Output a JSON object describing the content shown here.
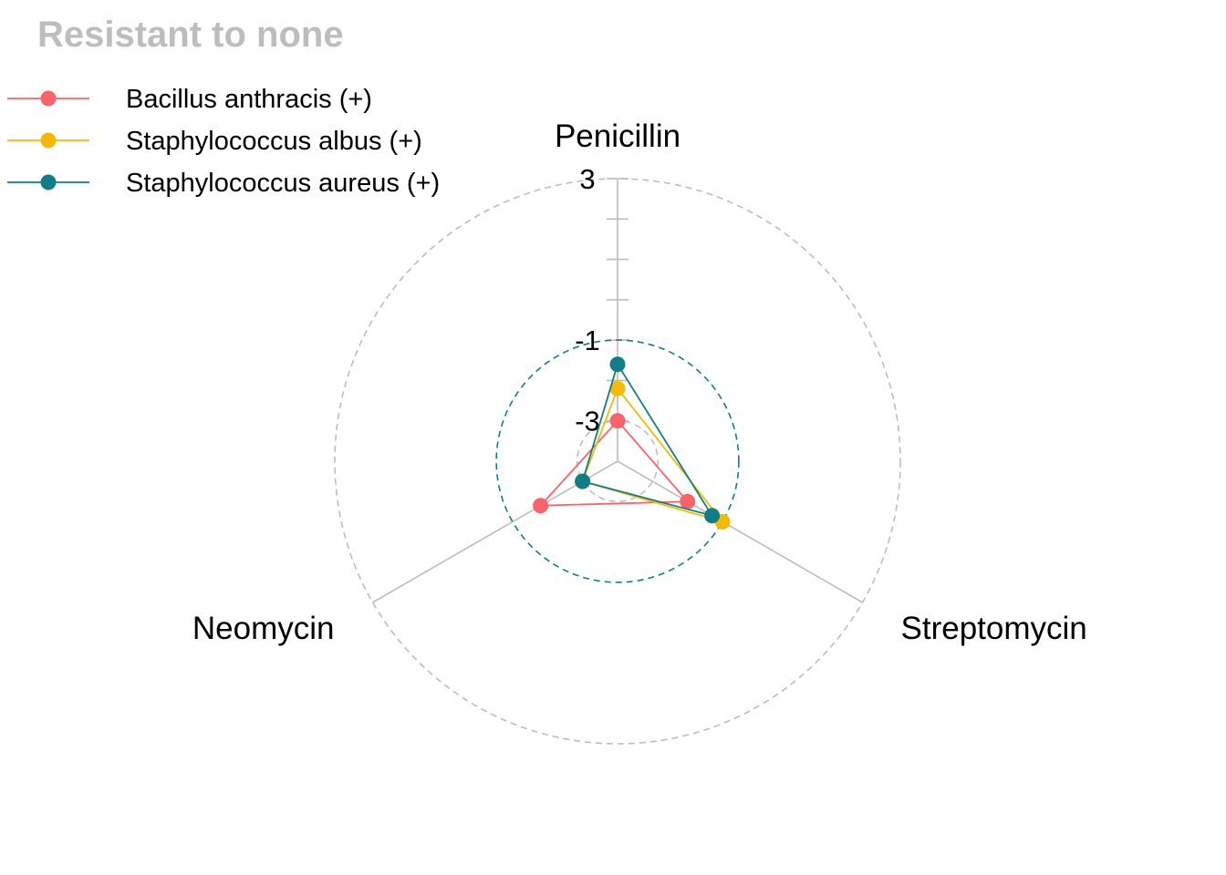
{
  "chart_data": {
    "type": "radar",
    "title": "Resistant to none",
    "axes": [
      "Penicillin",
      "Streptomycin",
      "Neomycin"
    ],
    "radial_range": [
      -4,
      3
    ],
    "grid_values": [
      -3,
      -1,
      3
    ],
    "highlighted_grid_value": -1,
    "tick_labels": [
      "3",
      "-1",
      "-3"
    ],
    "legend_position": "top-left",
    "series": [
      {
        "name": "Bacillus anthracis (+)",
        "color": "#F8646A",
        "values": [
          -3.0,
          -2.0,
          -1.8
        ]
      },
      {
        "name": "Staphylococcus albus (+)",
        "color": "#F5B90A",
        "values": [
          -2.2,
          -1.0,
          -3.0
        ]
      },
      {
        "name": "Staphylococcus aureus (+)",
        "color": "#117D87",
        "values": [
          -1.6,
          -1.3,
          -3.0
        ]
      }
    ],
    "colors": {
      "title": "#BDBDBD",
      "grid": "#BDBDBD",
      "highlight_grid": "#117D87"
    }
  }
}
